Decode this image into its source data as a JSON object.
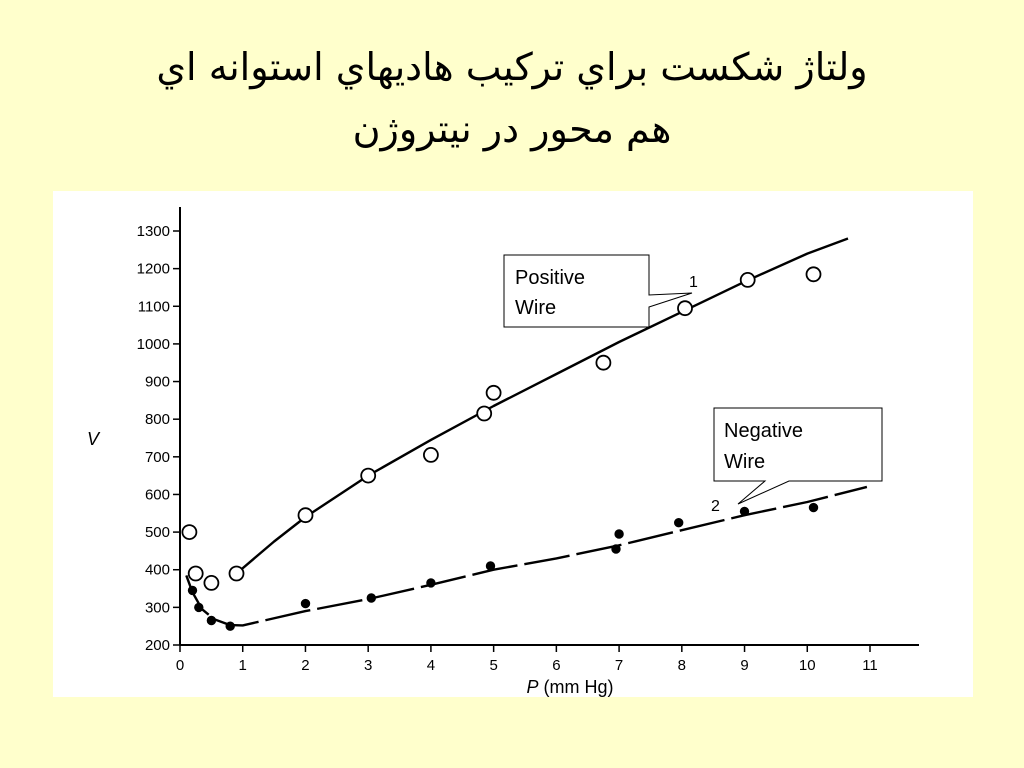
{
  "slide": {
    "title_line1": "ولتاژ شكست براي تركيب هاديهاي استوانه اي",
    "title_line2": "هم محور در نيتروژن"
  },
  "chart_data": {
    "type": "scatter",
    "xlabel": "P (mm Hg)",
    "ylabel": "V",
    "xlim": [
      0,
      11
    ],
    "ylim": [
      200,
      1300
    ],
    "xticks": [
      0,
      1,
      2,
      3,
      4,
      5,
      6,
      7,
      8,
      9,
      10,
      11
    ],
    "yticks": [
      200,
      300,
      400,
      500,
      600,
      700,
      800,
      900,
      1000,
      1100,
      1200,
      1300
    ],
    "grid": false,
    "series": [
      {
        "name": "Positive Wire",
        "curve_number": "1",
        "marker": "open-circle",
        "line_style": "solid",
        "points": [
          [
            0.15,
            500
          ],
          [
            0.25,
            390
          ],
          [
            0.5,
            365
          ],
          [
            0.9,
            390
          ],
          [
            2.0,
            545
          ],
          [
            3.0,
            650
          ],
          [
            4.0,
            705
          ],
          [
            4.85,
            815
          ],
          [
            5.0,
            870
          ],
          [
            6.75,
            950
          ],
          [
            8.05,
            1095
          ],
          [
            9.05,
            1170
          ],
          [
            10.1,
            1185
          ]
        ],
        "fit": [
          [
            0.9,
            390
          ],
          [
            1.5,
            475
          ],
          [
            2,
            540
          ],
          [
            3,
            650
          ],
          [
            4,
            745
          ],
          [
            5,
            835
          ],
          [
            6,
            920
          ],
          [
            7,
            1005
          ],
          [
            8,
            1085
          ],
          [
            9,
            1165
          ],
          [
            10,
            1240
          ],
          [
            10.65,
            1280
          ]
        ]
      },
      {
        "name": "Negative Wire",
        "curve_number": "2",
        "marker": "filled-circle",
        "line_style": "long-dash",
        "points": [
          [
            0.2,
            345
          ],
          [
            0.3,
            300
          ],
          [
            0.5,
            265
          ],
          [
            0.8,
            250
          ],
          [
            2.0,
            310
          ],
          [
            3.05,
            325
          ],
          [
            4.0,
            365
          ],
          [
            4.95,
            410
          ],
          [
            7.0,
            495
          ],
          [
            6.95,
            455
          ],
          [
            7.95,
            525
          ],
          [
            9.0,
            555
          ],
          [
            10.1,
            565
          ]
        ],
        "fit": [
          [
            0.1,
            385
          ],
          [
            0.2,
            340
          ],
          [
            0.35,
            295
          ],
          [
            0.55,
            268
          ],
          [
            0.8,
            253
          ],
          [
            1.0,
            252
          ],
          [
            2,
            290
          ],
          [
            3,
            322
          ],
          [
            4,
            360
          ],
          [
            5,
            400
          ],
          [
            6,
            430
          ],
          [
            7,
            465
          ],
          [
            8,
            505
          ],
          [
            9,
            545
          ],
          [
            10,
            580
          ],
          [
            10.95,
            620
          ]
        ]
      }
    ],
    "annotations": [
      {
        "text_line1": "Positive",
        "text_line2": "Wire",
        "target_series": 0
      },
      {
        "text_line1": "Negative",
        "text_line2": "Wire",
        "target_series": 1
      }
    ]
  }
}
